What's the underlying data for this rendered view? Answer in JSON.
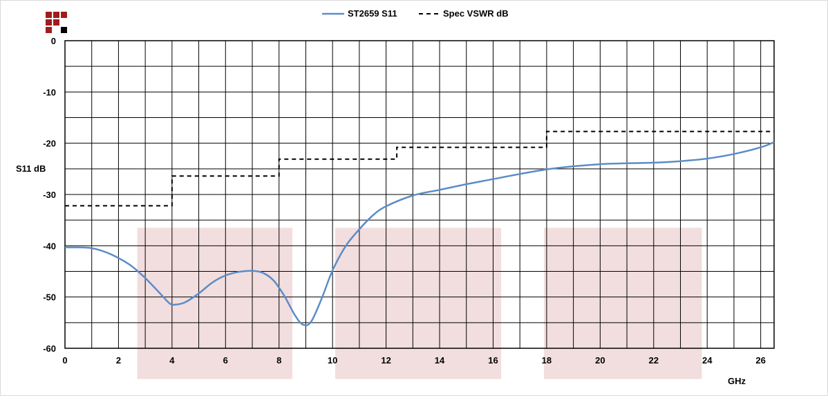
{
  "chart_data": {
    "type": "line",
    "xlabel": "GHz",
    "ylabel": "S11 dB",
    "xlim": [
      0,
      26.5
    ],
    "ylim": [
      -60,
      0
    ],
    "x_ticks": [
      0,
      2,
      4,
      6,
      8,
      10,
      12,
      14,
      16,
      18,
      20,
      22,
      24,
      26
    ],
    "y_ticks": [
      0,
      -10,
      -20,
      -30,
      -40,
      -50,
      -60
    ],
    "x_minor_step": 1,
    "y_minor_step": 5,
    "grid": true,
    "legend_position": "top-center",
    "colors": {
      "s11": "#5b8cc8",
      "spec": "#000000",
      "band": "#f2dede",
      "grid": "#000000",
      "logo_dark": "#a01c1c",
      "logo_black": "#000000"
    },
    "highlight_bands": [
      {
        "x0": 2.7,
        "x1": 8.5,
        "y0": -36.5,
        "y1": -66
      },
      {
        "x0": 10.1,
        "x1": 16.3,
        "y0": -36.5,
        "y1": -66
      },
      {
        "x0": 17.9,
        "x1": 23.8,
        "y0": -36.5,
        "y1": -66
      }
    ],
    "series": [
      {
        "name": "ST2659 S11",
        "style": "solid",
        "x": [
          0,
          0.9,
          1.5,
          2.0,
          2.5,
          3.0,
          3.5,
          3.9,
          4.1,
          4.5,
          5.0,
          5.5,
          6.0,
          6.5,
          7.0,
          7.4,
          7.8,
          8.2,
          8.6,
          8.9,
          9.2,
          9.6,
          10.0,
          10.5,
          11.0,
          11.5,
          12.0,
          13.0,
          14.0,
          15.0,
          16.0,
          17.0,
          18.0,
          19.0,
          20.0,
          21.0,
          22.0,
          23.0,
          24.0,
          25.0,
          26.0,
          26.5
        ],
        "y": [
          -40.3,
          -40.4,
          -41.2,
          -42.4,
          -44.0,
          -46.3,
          -49.0,
          -51.2,
          -51.5,
          -51.0,
          -49.3,
          -47.2,
          -45.8,
          -45.1,
          -44.9,
          -45.3,
          -46.8,
          -49.8,
          -53.6,
          -55.4,
          -54.8,
          -50.2,
          -44.8,
          -40.0,
          -36.8,
          -34.1,
          -32.3,
          -30.2,
          -29.1,
          -28.0,
          -27.0,
          -26.0,
          -25.1,
          -24.5,
          -24.1,
          -23.9,
          -23.8,
          -23.5,
          -23.0,
          -22.1,
          -20.8,
          -19.8
        ]
      },
      {
        "name": "Spec VSWR dB",
        "style": "dashed",
        "x": [
          0,
          4.0,
          4.0,
          8.0,
          8.0,
          12.4,
          12.4,
          18.0,
          18.0,
          26.5
        ],
        "y": [
          -32.2,
          -32.2,
          -26.4,
          -26.4,
          -23.1,
          -23.1,
          -20.8,
          -20.8,
          -17.7,
          -17.7
        ]
      }
    ]
  }
}
